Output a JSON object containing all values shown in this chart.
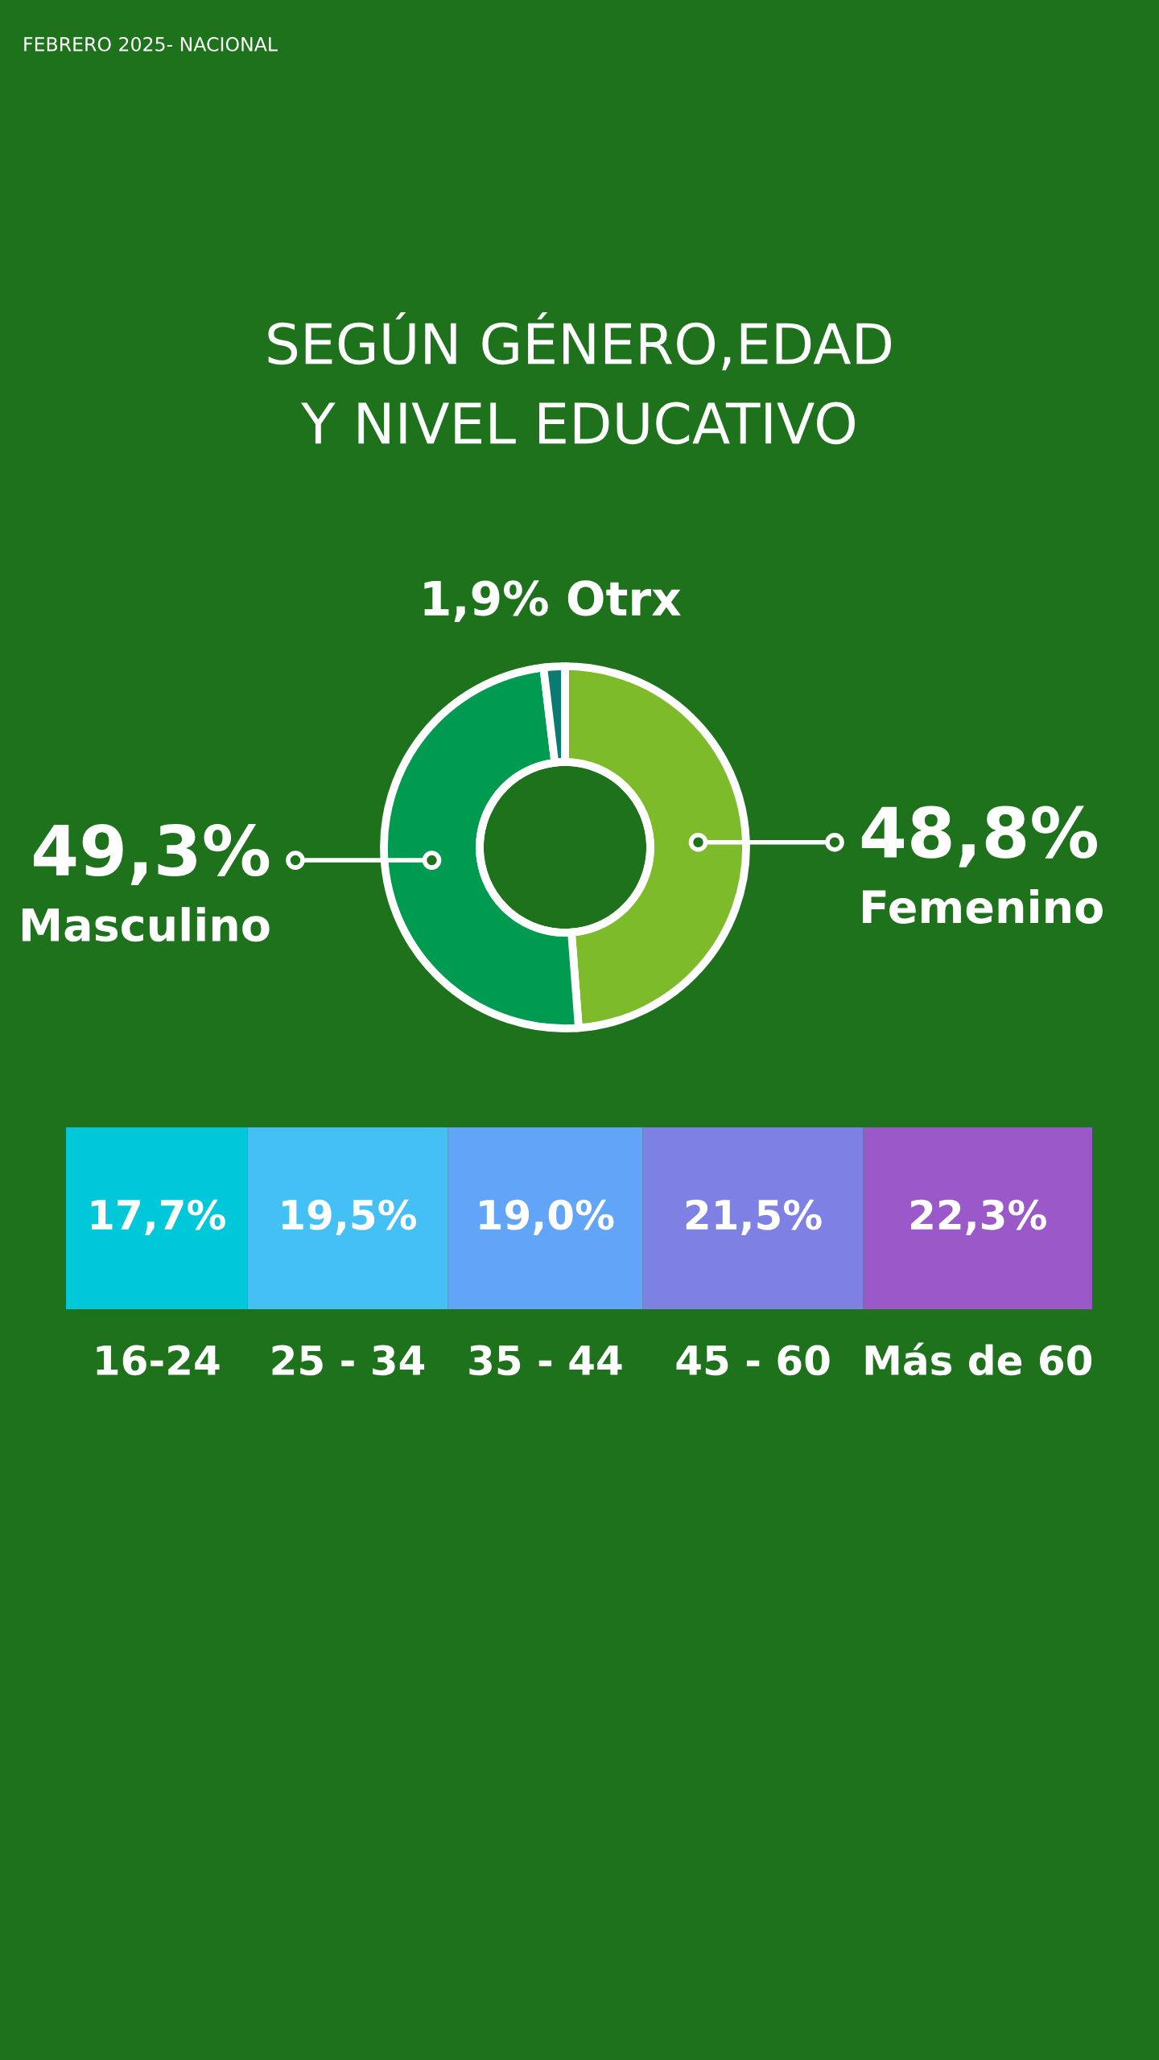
{
  "chart_data": [
    {
      "type": "donut",
      "title": "SEGÚN GÉNERO,EDAD\nY NIVEL EDUCATIVO",
      "annotations": [
        "FEBRERO 2025- NACIONAL"
      ],
      "categories": [
        "Femenino",
        "Masculino",
        "Otrx"
      ],
      "values": [
        48.8,
        49.3,
        1.9
      ],
      "value_labels": [
        "48,8%",
        "49,3%",
        "1,9%"
      ],
      "colors": [
        "#7dbb2a",
        "#009a50",
        "#0b7a70"
      ],
      "legend": "center"
    },
    {
      "type": "bar",
      "orientation": "horizontal",
      "stacked": true,
      "categories": [
        null
      ],
      "series": [
        {
          "name": "16-24",
          "color": "#00c8d8",
          "values": [
            17.7
          ],
          "value_labels": [
            "17,7%"
          ]
        },
        {
          "name": "25 - 34",
          "color": "#45c0f5",
          "values": [
            19.5
          ],
          "value_labels": [
            "19,5%"
          ]
        },
        {
          "name": "35 - 44",
          "color": "#62a4f7",
          "values": [
            19.0
          ],
          "value_labels": [
            "19,0%"
          ]
        },
        {
          "name": "45 - 60",
          "color": "#7e80e3",
          "values": [
            21.5
          ],
          "value_labels": [
            "21,5%"
          ]
        },
        {
          "name": "Más de 60",
          "color": "#9a58c8",
          "values": [
            22.3
          ],
          "value_labels": [
            "22,3%"
          ]
        }
      ],
      "legend": false
    }
  ]
}
